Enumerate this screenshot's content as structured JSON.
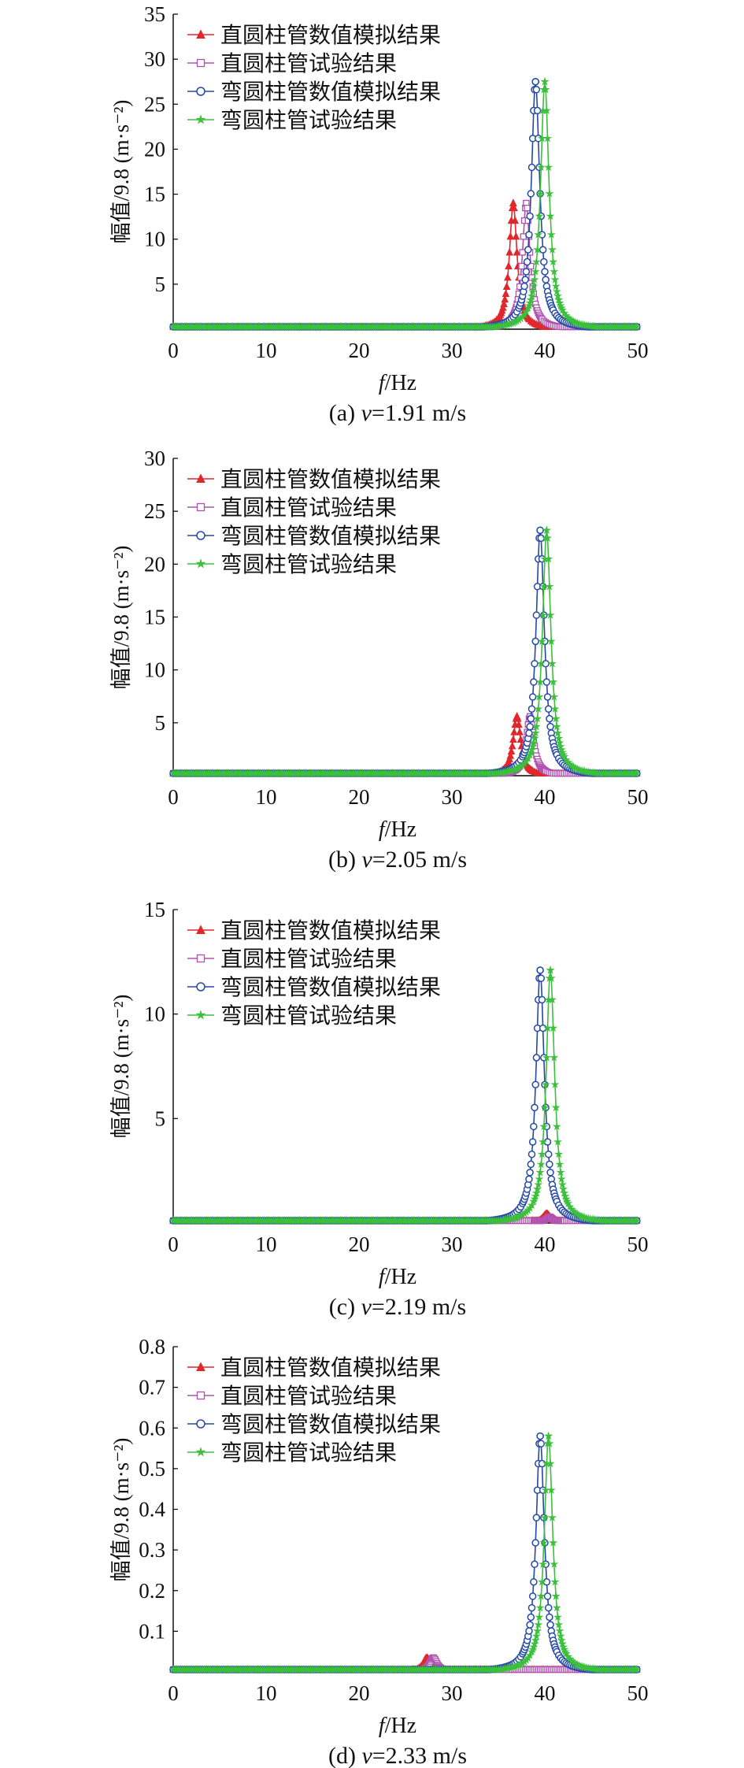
{
  "legend_labels": [
    "直圆柱管数值模拟结果",
    "直圆柱管试验结果",
    "弯圆柱管数值模拟结果",
    "弯圆柱管试验结果"
  ],
  "series_colors": [
    "#e0282c",
    "#b050b0",
    "#2448a8",
    "#3cc03c"
  ],
  "series_markers": [
    "triangle",
    "square",
    "circle",
    "star"
  ],
  "chart_data": [
    {
      "type": "line",
      "caption": {
        "prefix": "(a) ",
        "var": "v",
        "rest": "=1.91 m/s"
      },
      "xlabel": {
        "var": "f",
        "rest": "/Hz"
      },
      "ylabel": "幅值/9.8 (m·s⁻²)",
      "xlim": [
        0,
        50
      ],
      "ylim": [
        0,
        35
      ],
      "xticks": [
        0,
        10,
        20,
        30,
        40,
        50
      ],
      "yticks": [
        5,
        10,
        15,
        20,
        25,
        30,
        35
      ],
      "legend_position": "top-left",
      "series": [
        {
          "name": "直圆柱管数值模拟结果",
          "peak_x": 36.6,
          "peak_y": 14.0
        },
        {
          "name": "直圆柱管试验结果",
          "peak_x": 38.0,
          "peak_y": 14.0
        },
        {
          "name": "弯圆柱管数值模拟结果",
          "peak_x": 39.0,
          "peak_y": 27.5
        },
        {
          "name": "弯圆柱管试验结果",
          "peak_x": 40.0,
          "peak_y": 27.5
        }
      ]
    },
    {
      "type": "line",
      "caption": {
        "prefix": "(b) ",
        "var": "v",
        "rest": "=2.05 m/s"
      },
      "xlabel": {
        "var": "f",
        "rest": "/Hz"
      },
      "ylabel": "幅值/9.8 (m·s⁻²)",
      "xlim": [
        0,
        50
      ],
      "ylim": [
        0,
        30
      ],
      "xticks": [
        0,
        10,
        20,
        30,
        40,
        50
      ],
      "yticks": [
        5,
        10,
        15,
        20,
        25,
        30
      ],
      "legend_position": "top-left",
      "series": [
        {
          "name": "直圆柱管数值模拟结果",
          "peak_x": 37.0,
          "peak_y": 5.6
        },
        {
          "name": "直圆柱管试验结果",
          "peak_x": 38.4,
          "peak_y": 5.6
        },
        {
          "name": "弯圆柱管数值模拟结果",
          "peak_x": 39.5,
          "peak_y": 23.2
        },
        {
          "name": "弯圆柱管试验结果",
          "peak_x": 40.2,
          "peak_y": 23.2
        }
      ]
    },
    {
      "type": "line",
      "caption": {
        "prefix": "(c) ",
        "var": "v",
        "rest": "=2.19 m/s"
      },
      "xlabel": {
        "var": "f",
        "rest": "/Hz"
      },
      "ylabel": "幅值/9.8 (m·s⁻²)",
      "xlim": [
        0,
        50
      ],
      "ylim": [
        0,
        15
      ],
      "xticks": [
        0,
        10,
        20,
        30,
        40,
        50
      ],
      "yticks": [
        5,
        10,
        15
      ],
      "legend_position": "top-left",
      "series": [
        {
          "name": "直圆柱管数值模拟结果",
          "peak_x": 40.2,
          "peak_y": 0.45
        },
        {
          "name": "直圆柱管试验结果",
          "peak_x": 40.5,
          "peak_y": 0.3
        },
        {
          "name": "弯圆柱管数值模拟结果",
          "peak_x": 39.5,
          "peak_y": 12.1
        },
        {
          "name": "弯圆柱管试验结果",
          "peak_x": 40.6,
          "peak_y": 12.1
        }
      ]
    },
    {
      "type": "line",
      "caption": {
        "prefix": "(d) ",
        "var": "v",
        "rest": "=2.33 m/s"
      },
      "xlabel": {
        "var": "f",
        "rest": "/Hz"
      },
      "ylabel": "幅值/9.8 (m·s⁻²)",
      "xlim": [
        0,
        50
      ],
      "ylim": [
        0,
        0.8
      ],
      "xticks": [
        0,
        10,
        20,
        30,
        40,
        50
      ],
      "yticks": [
        0.1,
        0.2,
        0.3,
        0.4,
        0.5,
        0.6,
        0.7,
        0.8
      ],
      "legend_position": "top-left",
      "series": [
        {
          "name": "直圆柱管数值模拟结果",
          "peak_x": 27.3,
          "peak_y": 0.035
        },
        {
          "name": "直圆柱管试验结果",
          "peak_x": 28.0,
          "peak_y": 0.035
        },
        {
          "name": "弯圆柱管数值模拟结果",
          "peak_x": 39.5,
          "peak_y": 0.58
        },
        {
          "name": "弯圆柱管试验结果",
          "peak_x": 40.4,
          "peak_y": 0.58
        }
      ]
    }
  ]
}
